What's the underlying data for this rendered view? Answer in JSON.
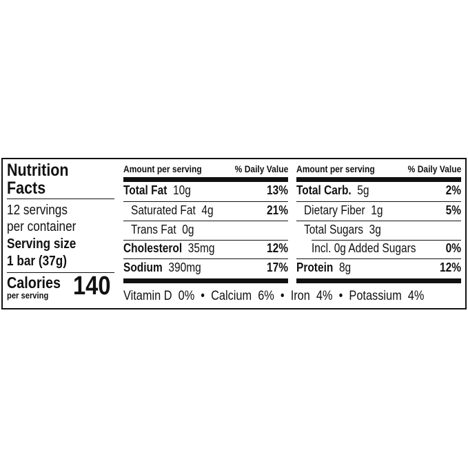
{
  "title": "Nutrition Facts",
  "title_line1": "Nutrition",
  "title_line2": "Facts",
  "servings_line1": "12 servings",
  "servings_line2": "per container",
  "serving_size_label": "Serving size",
  "serving_size_value": "1 bar (37g)",
  "calories_label": "Calories",
  "calories_sub": "per serving",
  "calories_value": "140",
  "header": {
    "amount": "Amount per serving",
    "dv": "% Daily Value"
  },
  "left_nutrients": [
    {
      "name": "Total Fat",
      "amount": "10g",
      "dv": "13%"
    },
    {
      "name": "Saturated Fat",
      "amount": "4g",
      "dv": "21%"
    },
    {
      "name": "Trans Fat",
      "amount": "0g",
      "dv": ""
    },
    {
      "name": "Cholesterol",
      "amount": "35mg",
      "dv": "12%"
    },
    {
      "name": "Sodium",
      "amount": "390mg",
      "dv": "17%"
    }
  ],
  "right_nutrients": [
    {
      "name": "Total Carb.",
      "amount": "5g",
      "dv": "2%"
    },
    {
      "name": "Dietary Fiber",
      "amount": "1g",
      "dv": "5%"
    },
    {
      "name": "Total Sugars",
      "amount": "3g",
      "dv": ""
    },
    {
      "name": "Incl. 0g Added Sugars",
      "amount": "",
      "dv": "0%"
    },
    {
      "name": "Protein",
      "amount": "8g",
      "dv": "12%"
    }
  ],
  "vitamins": "Vitamin D  0%  •  Calcium  6%  •  Iron  4%  •  Potassium  4%"
}
